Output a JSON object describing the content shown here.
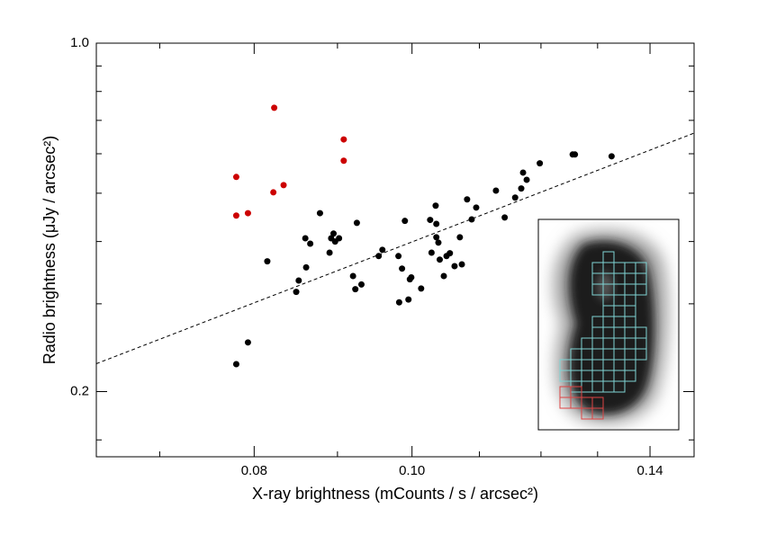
{
  "chart_data": {
    "type": "scatter",
    "xlabel": "X-ray brightness (mCounts / s / arcsec²)",
    "ylabel": "Radio brightness (μJy / arcsec²)",
    "xscale": "log",
    "yscale": "log",
    "xlim": [
      0.064,
      0.149
    ],
    "ylim": [
      0.148,
      1.0
    ],
    "xticks": [
      0.08,
      {
        "value": 0.1,
        "label": "0.10"
      },
      0.14
    ],
    "yticks": [
      {
        "value": 0.2,
        "label": "0.2"
      },
      {
        "value": 1,
        "label": "1.0"
      }
    ],
    "xminor_ticks": [
      0.07,
      0.09,
      0.11,
      0.12,
      0.13
    ],
    "yminor_ticks": [
      0.16,
      0.3,
      0.4,
      0.5,
      0.6,
      0.7,
      0.8,
      0.9
    ],
    "series": [
      {
        "color": "#000000",
        "x": [
          0.078,
          0.0793,
          0.0815,
          0.0849,
          0.0852,
          0.086,
          0.0861,
          0.0866,
          0.0878,
          0.089,
          0.0892,
          0.0895,
          0.0897,
          0.0902,
          0.0925,
          0.092,
          0.0923,
          0.0931,
          0.0954,
          0.0959,
          0.0981,
          0.0982,
          0.0986,
          0.099,
          0.0995,
          0.0997,
          0.0999,
          0.1013,
          0.1026,
          0.1028,
          0.1034,
          0.1035,
          0.1035,
          0.1038,
          0.104,
          0.1046,
          0.105,
          0.1055,
          0.1062,
          0.107,
          0.1073,
          0.1081,
          0.1088,
          0.1095,
          0.1126,
          0.114,
          0.1157,
          0.1167,
          0.117,
          0.1176,
          0.1198,
          0.1255,
          0.1259,
          0.1326
        ],
        "values": [
          0.227,
          0.251,
          0.365,
          0.317,
          0.334,
          0.406,
          0.355,
          0.396,
          0.456,
          0.38,
          0.406,
          0.415,
          0.4,
          0.406,
          0.436,
          0.341,
          0.321,
          0.328,
          0.374,
          0.385,
          0.374,
          0.302,
          0.353,
          0.44,
          0.306,
          0.336,
          0.339,
          0.322,
          0.442,
          0.38,
          0.472,
          0.434,
          0.408,
          0.398,
          0.368,
          0.341,
          0.374,
          0.379,
          0.357,
          0.408,
          0.36,
          0.486,
          0.443,
          0.468,
          0.506,
          0.447,
          0.49,
          0.511,
          0.55,
          0.532,
          0.574,
          0.598,
          0.598,
          0.593
        ]
      },
      {
        "color": "#cc0000",
        "x": [
          0.078,
          0.078,
          0.0793,
          0.0822,
          0.0823,
          0.0834,
          0.0908,
          0.0908
        ],
        "values": [
          0.539,
          0.451,
          0.456,
          0.502,
          0.742,
          0.519,
          0.641,
          0.581
        ]
      }
    ],
    "fit_line": {
      "color": "#000000",
      "dashed": true,
      "x": [
        0.064,
        0.149
      ],
      "values": [
        0.2275,
        0.66
      ]
    }
  }
}
